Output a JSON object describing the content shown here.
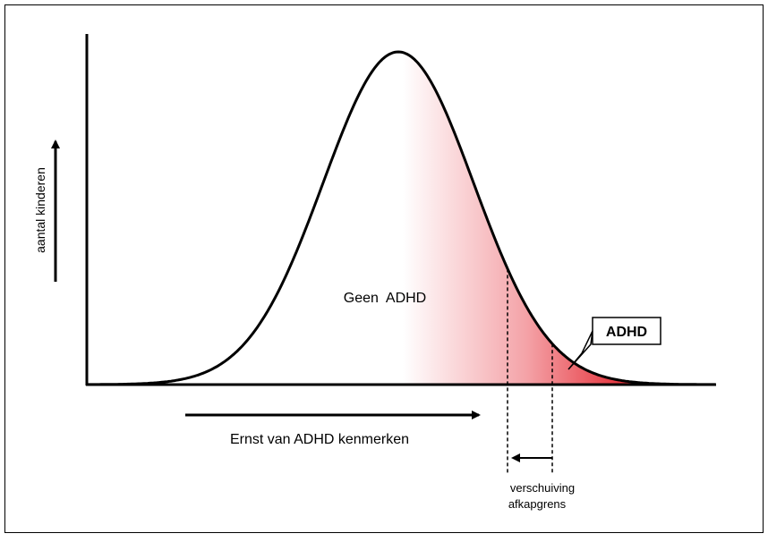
{
  "y_axis_label": "aantal kinderen",
  "x_axis_label": "Ernst van ADHD kenmerken",
  "region_normal": "Geen  ADHD",
  "region_adhd": "ADHD",
  "shift_label": [
    "verschuiving",
    "afkapgrens"
  ]
}
